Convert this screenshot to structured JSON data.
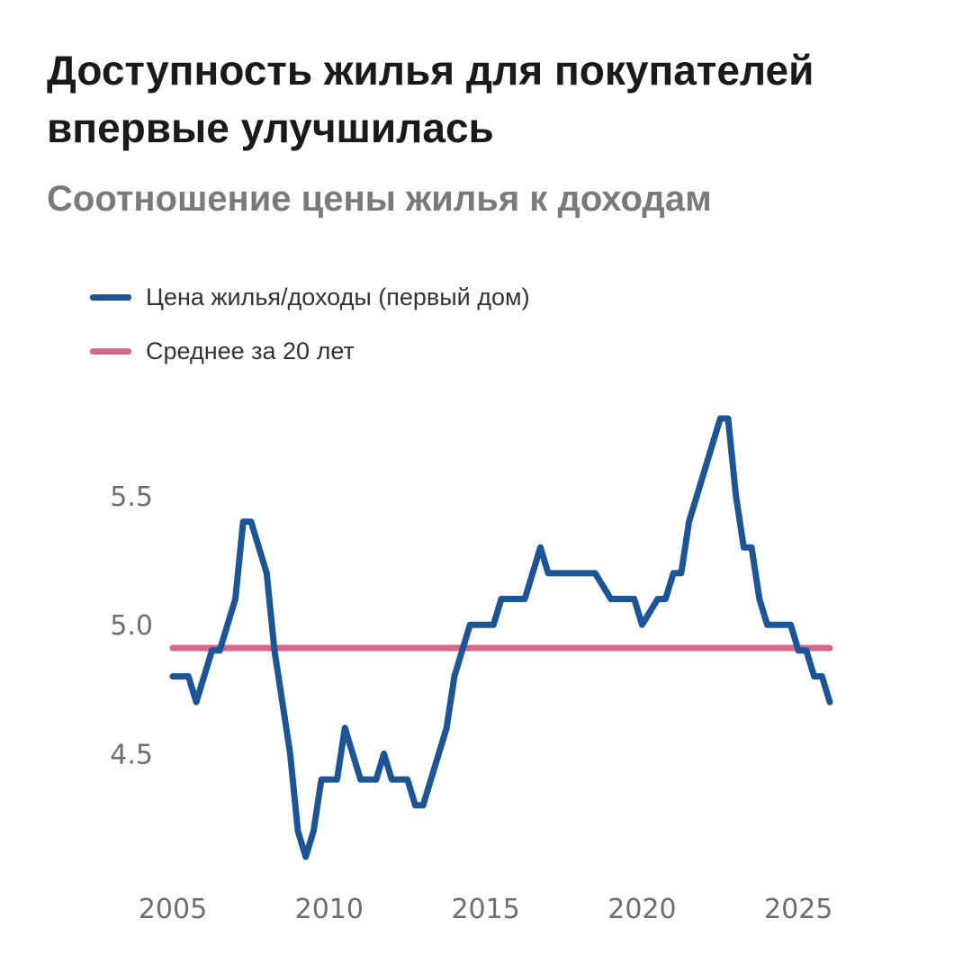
{
  "colors": {
    "main_line": "#1c5596",
    "average_line": "#d9658c"
  },
  "chart_data": {
    "type": "line",
    "title": "Доступность жилья для покупателей впервые улучшилась",
    "subtitle": "Соотношение цены жилья к доходам",
    "xlabel": "",
    "ylabel": "",
    "xlim": [
      2005,
      2026
    ],
    "ylim": [
      4.1,
      5.8
    ],
    "x_ticks": [
      "2005",
      "2010",
      "2015",
      "2020",
      "2025"
    ],
    "y_ticks": [
      "4.5",
      "5.0",
      "5.5"
    ],
    "legend_position": "top-left",
    "grid": false,
    "series": [
      {
        "name": "Цена жилья/доходы (первый дом)",
        "x": [
          2005.0,
          2005.5,
          2005.75,
          2006.25,
          2006.5,
          2007.0,
          2007.25,
          2007.5,
          2008.0,
          2008.25,
          2008.75,
          2009.0,
          2009.25,
          2009.5,
          2009.75,
          2010.25,
          2010.5,
          2011.0,
          2011.5,
          2011.75,
          2012.0,
          2012.5,
          2012.75,
          2013.0,
          2013.25,
          2013.75,
          2014.0,
          2014.5,
          2014.75,
          2015.25,
          2015.5,
          2016.25,
          2016.5,
          2016.75,
          2017.0,
          2017.5,
          2018.25,
          2018.5,
          2019.0,
          2019.5,
          2019.75,
          2020.0,
          2020.5,
          2020.75,
          2021.0,
          2021.25,
          2021.5,
          2021.75,
          2022.0,
          2022.25,
          2022.5,
          2022.75,
          2023.0,
          2023.25,
          2023.5,
          2023.75,
          2024.0,
          2024.5,
          2024.75,
          2025.0,
          2025.25,
          2025.5,
          2025.75,
          2026.0
        ],
        "values": [
          4.8,
          4.8,
          4.7,
          4.9,
          4.9,
          5.1,
          5.4,
          5.4,
          5.2,
          4.9,
          4.5,
          4.2,
          4.1,
          4.2,
          4.4,
          4.4,
          4.6,
          4.4,
          4.4,
          4.5,
          4.4,
          4.4,
          4.3,
          4.3,
          4.4,
          4.6,
          4.8,
          5.0,
          5.0,
          5.0,
          5.1,
          5.1,
          5.2,
          5.3,
          5.2,
          5.2,
          5.2,
          5.2,
          5.1,
          5.1,
          5.1,
          5.0,
          5.1,
          5.1,
          5.2,
          5.2,
          5.4,
          5.5,
          5.6,
          5.7,
          5.8,
          5.8,
          5.5,
          5.3,
          5.3,
          5.1,
          5.0,
          5.0,
          5.0,
          4.9,
          4.9,
          4.8,
          4.8,
          4.7
        ]
      },
      {
        "name": "Среднее за 20 лет",
        "x": [
          2005.0,
          2026.0
        ],
        "values": [
          4.91,
          4.91
        ]
      }
    ]
  }
}
